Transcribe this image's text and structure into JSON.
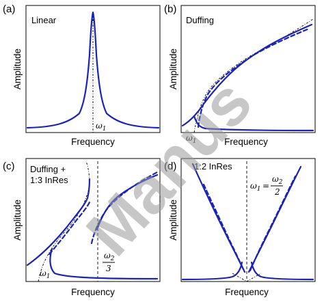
{
  "chart_data": [
    {
      "type": "line",
      "panel": "(a)",
      "title": "Linear",
      "xlabel": "Frequency",
      "ylabel": "Amplitude",
      "annotation": "ω1",
      "series": [
        {
          "style": "solid-blue",
          "role": "resonance peak",
          "x": [
            0.0,
            0.2,
            0.35,
            0.44,
            0.48,
            0.5,
            0.52,
            0.56,
            0.65,
            0.8,
            1.0
          ],
          "y": [
            0.04,
            0.06,
            0.11,
            0.28,
            0.55,
            1.0,
            0.55,
            0.28,
            0.11,
            0.06,
            0.04
          ]
        },
        {
          "style": "dashdot-black",
          "role": "backbone",
          "x": [
            0.5,
            0.5
          ],
          "y": [
            0.0,
            1.0
          ]
        }
      ]
    },
    {
      "type": "line",
      "panel": "(b)",
      "title": "Duffing",
      "xlabel": "Frequency",
      "ylabel": "Amplitude",
      "annotation": "ω1",
      "series": [
        {
          "style": "solid-blue",
          "role": "upper stable branch",
          "x": [
            0.0,
            0.1,
            0.2,
            0.28,
            0.32,
            0.4,
            0.55,
            0.7,
            0.85,
            0.97
          ],
          "y": [
            0.04,
            0.12,
            0.26,
            0.4,
            0.47,
            0.59,
            0.71,
            0.82,
            0.91,
            0.97
          ]
        },
        {
          "style": "dashed-blue",
          "role": "unstable branch",
          "x": [
            0.25,
            0.3,
            0.4,
            0.55,
            0.7,
            0.85,
            0.97
          ],
          "y": [
            0.03,
            0.26,
            0.5,
            0.65,
            0.79,
            0.89,
            0.95
          ]
        },
        {
          "style": "solid-blue",
          "role": "lower stable branch",
          "x": [
            0.2,
            0.25,
            0.3,
            0.45,
            0.7,
            1.0
          ],
          "y": [
            0.12,
            0.05,
            0.03,
            0.02,
            0.01,
            0.01
          ]
        },
        {
          "style": "dashdot-black",
          "role": "backbone",
          "x": [
            0.22,
            0.3,
            0.45,
            0.6,
            0.75,
            0.9,
            1.0
          ],
          "y": [
            0.0,
            0.4,
            0.62,
            0.74,
            0.83,
            0.92,
            0.97
          ]
        }
      ]
    },
    {
      "type": "line",
      "panel": "(c)",
      "title": "Duffing +\n1:3 InRes",
      "xlabel": "Frequency",
      "ylabel": "Amplitude",
      "annotations": [
        "ω1",
        "ω2/3"
      ],
      "series": [
        {
          "style": "solid-blue",
          "role": "left stable branch",
          "x": [
            0.0,
            0.15,
            0.3,
            0.42,
            0.47,
            0.48
          ],
          "y": [
            0.05,
            0.25,
            0.45,
            0.6,
            0.7,
            0.83
          ]
        },
        {
          "style": "dashed-blue",
          "role": "left unstable branch",
          "x": [
            0.2,
            0.25,
            0.35,
            0.45,
            0.48
          ],
          "y": [
            0.14,
            0.27,
            0.45,
            0.58,
            0.63
          ]
        },
        {
          "style": "solid-blue",
          "role": "right upper branch",
          "x": [
            0.5,
            0.55,
            0.62,
            0.72,
            0.85,
            1.0
          ],
          "y": [
            0.2,
            0.4,
            0.6,
            0.72,
            0.82,
            0.88
          ]
        },
        {
          "style": "dashed-blue",
          "role": "right unstable branch",
          "x": [
            0.46,
            0.5,
            0.56,
            0.66,
            0.8,
            1.0
          ],
          "y": [
            0.18,
            0.32,
            0.52,
            0.7,
            0.82,
            0.91
          ]
        },
        {
          "style": "solid-blue",
          "role": "bottom branch",
          "x": [
            0.18,
            0.22,
            0.3,
            0.5,
            0.75,
            1.0
          ],
          "y": [
            0.2,
            0.05,
            0.02,
            0.02,
            0.01,
            0.01
          ]
        },
        {
          "style": "dashdot-black",
          "role": "backbone",
          "x": [
            0.1,
            0.25,
            0.4,
            0.48,
            0.46
          ],
          "y": [
            0.0,
            0.2,
            0.5,
            0.85,
            1.0
          ]
        },
        {
          "style": "dashed-black",
          "role": "ω2/3 marker",
          "x": [
            0.5,
            0.5
          ],
          "y": [
            0.0,
            1.0
          ]
        }
      ]
    },
    {
      "type": "line",
      "panel": "(d)",
      "title": "1:2 InRes",
      "xlabel": "Frequency",
      "ylabel": "Amplitude",
      "annotation": "ω1 = ω2/2",
      "series": [
        {
          "style": "solid-blue",
          "role": "left arm",
          "x": [
            0.0,
            0.1,
            0.2,
            0.3,
            0.4,
            0.45,
            0.48
          ],
          "y": [
            1.0,
            0.8,
            0.6,
            0.4,
            0.22,
            0.12,
            0.05
          ]
        },
        {
          "style": "dashed-blue",
          "role": "left arm unstable",
          "x": [
            0.08,
            0.2,
            0.3,
            0.4,
            0.47
          ],
          "y": [
            0.82,
            0.58,
            0.39,
            0.2,
            0.04
          ]
        },
        {
          "style": "solid-blue",
          "role": "right arm",
          "x": [
            0.52,
            0.55,
            0.6,
            0.7,
            0.8,
            0.9,
            1.0
          ],
          "y": [
            0.05,
            0.12,
            0.22,
            0.42,
            0.62,
            0.82,
            1.0
          ]
        },
        {
          "style": "dashed-blue",
          "role": "right arm unstable",
          "x": [
            0.53,
            0.6,
            0.7,
            0.8,
            0.9
          ],
          "y": [
            0.04,
            0.2,
            0.4,
            0.6,
            0.8
          ]
        },
        {
          "style": "solid-blue",
          "role": "bottom left",
          "x": [
            0.0,
            0.2,
            0.35,
            0.43,
            0.46,
            0.47
          ],
          "y": [
            0.01,
            0.015,
            0.025,
            0.05,
            0.09,
            0.15
          ]
        },
        {
          "style": "solid-blue",
          "role": "bottom right",
          "x": [
            0.53,
            0.54,
            0.57,
            0.65,
            0.8,
            1.0
          ],
          "y": [
            0.15,
            0.09,
            0.05,
            0.025,
            0.015,
            0.01
          ]
        },
        {
          "style": "dashed-black",
          "role": "ω1 marker",
          "x": [
            0.5,
            0.5
          ],
          "y": [
            0.0,
            1.0
          ]
        }
      ]
    }
  ],
  "panels": {
    "a": {
      "letter": "(a)",
      "title": "Linear",
      "xlabel": "Frequency",
      "ylabel": "Amplitude"
    },
    "b": {
      "letter": "(b)",
      "title": "Duffing",
      "xlabel": "Frequency",
      "ylabel": "Amplitude"
    },
    "c": {
      "letter": "(c)",
      "title_line1": "Duffing +",
      "title_line2": "1:3 InRes",
      "xlabel": "Frequency",
      "ylabel": "Amplitude"
    },
    "d": {
      "letter": "(d)",
      "title": "1:2 InRes",
      "xlabel": "Frequency",
      "ylabel": "Amplitude"
    }
  },
  "math": {
    "omega1": "ω",
    "sub1": "1",
    "omega2": "ω",
    "sub2": "2",
    "three": "3",
    "two": "2",
    "equals": "="
  },
  "watermark": "Manus",
  "colors": {
    "curve": "#1a22b8",
    "axis": "#000000",
    "watermark": "#9a9a9a"
  }
}
